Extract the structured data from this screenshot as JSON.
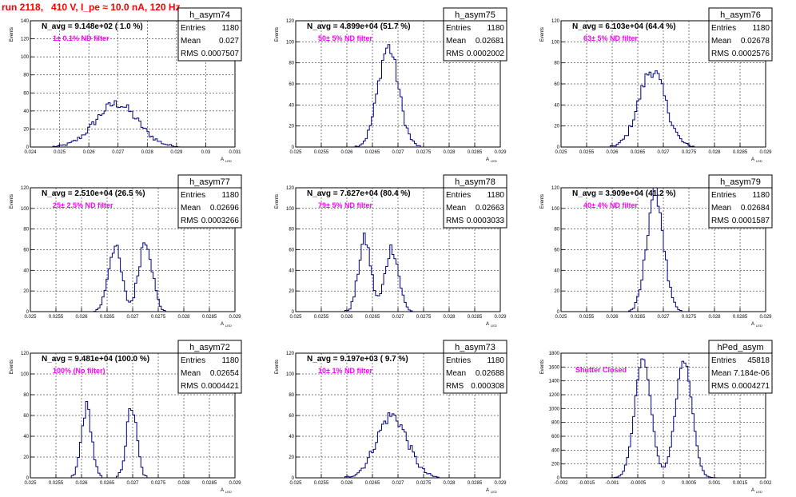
{
  "page": {
    "title": "run 2118,   410 V, I_pe ≈ 10.0 nA, 120 Hz",
    "stat_labels": [
      "Entries",
      "Mean",
      "RMS"
    ],
    "axis_label_y": "Events",
    "axis_label_x": "A",
    "axis_label_x_sub": "LED"
  },
  "chart_data": [
    {
      "type": "bar",
      "name": "h_asym74",
      "nav": "N_avg = 9.148e+02 ( 1.0 %)",
      "filter": "1± 0.1% ND filter",
      "entries": "1180",
      "mean": "0.027",
      "rms": "0.0007507",
      "xlim": [
        0.024,
        0.031
      ],
      "ylim": [
        0,
        140
      ],
      "xticks": [
        "0.024",
        "0.025",
        "0.026",
        "0.027",
        "0.028",
        "0.029",
        "0.03",
        "0.031"
      ],
      "yticks": [
        "0",
        "20",
        "40",
        "60",
        "80",
        "100",
        "120",
        "140"
      ],
      "bins": 100,
      "peaks": [
        [
          0.02695,
          0.00072,
          48
        ]
      ]
    },
    {
      "type": "bar",
      "name": "h_asym75",
      "nav": "N_avg = 4.899e+04 (51.7 %)",
      "filter": "50± 5% ND filter",
      "entries": "1180",
      "mean": "0.02681",
      "rms": "0.0002002",
      "xlim": [
        0.025,
        0.029
      ],
      "ylim": [
        0,
        120
      ],
      "xticks": [
        "0.025",
        "0.0255",
        "0.026",
        "0.0265",
        "0.027",
        "0.0275",
        "0.028",
        "0.0285",
        "0.029"
      ],
      "yticks": [
        "0",
        "20",
        "40",
        "60",
        "80",
        "100",
        "120"
      ],
      "bins": 100,
      "peaks": [
        [
          0.02681,
          0.0002,
          95
        ]
      ]
    },
    {
      "type": "bar",
      "name": "h_asym76",
      "nav": "N_avg = 6.103e+04 (64.4 %)",
      "filter": "63± 5% ND filter",
      "entries": "1180",
      "mean": "0.02678",
      "rms": "0.0002576",
      "xlim": [
        0.025,
        0.029
      ],
      "ylim": [
        0,
        120
      ],
      "xticks": [
        "0.025",
        "0.0255",
        "0.026",
        "0.0265",
        "0.027",
        "0.0275",
        "0.028",
        "0.0285",
        "0.029"
      ],
      "yticks": [
        "0",
        "20",
        "40",
        "60",
        "80",
        "100",
        "120"
      ],
      "bins": 100,
      "peaks": [
        [
          0.02678,
          0.00026,
          73
        ]
      ]
    },
    {
      "type": "bar",
      "name": "h_asym77",
      "nav": "N_avg = 2.510e+04 (26.5 %)",
      "filter": "25± 2.5% ND filter",
      "entries": "1180",
      "mean": "0.02696",
      "rms": "0.0003266",
      "xlim": [
        0.025,
        0.029
      ],
      "ylim": [
        0,
        120
      ],
      "xticks": [
        "0.025",
        "0.0255",
        "0.026",
        "0.0265",
        "0.027",
        "0.0275",
        "0.028",
        "0.0285",
        "0.029"
      ],
      "yticks": [
        "0",
        "20",
        "40",
        "60",
        "80",
        "100",
        "120"
      ],
      "bins": 100,
      "peaks": [
        [
          0.02665,
          0.00013,
          63
        ],
        [
          0.02725,
          0.00013,
          70
        ]
      ]
    },
    {
      "type": "bar",
      "name": "h_asym78",
      "nav": "N_avg = 7.627e+04 (80.4 %)",
      "filter": "79± 5% ND filter",
      "entries": "1180",
      "mean": "0.02663",
      "rms": "0.0003033",
      "xlim": [
        0.025,
        0.029
      ],
      "ylim": [
        0,
        120
      ],
      "xticks": [
        "0.025",
        "0.0255",
        "0.026",
        "0.0265",
        "0.027",
        "0.0275",
        "0.028",
        "0.0285",
        "0.029"
      ],
      "yticks": [
        "0",
        "20",
        "40",
        "60",
        "80",
        "100",
        "120"
      ],
      "bins": 100,
      "peaks": [
        [
          0.02635,
          0.00012,
          70
        ],
        [
          0.02688,
          0.00013,
          62
        ]
      ]
    },
    {
      "type": "bar",
      "name": "h_asym79",
      "nav": "N_avg = 3.909e+04 (41.2 %)",
      "filter": "40± 4% ND filter",
      "entries": "1180",
      "mean": "0.02684",
      "rms": "0.0001587",
      "xlim": [
        0.025,
        0.029
      ],
      "ylim": [
        0,
        120
      ],
      "xticks": [
        "0.025",
        "0.0255",
        "0.026",
        "0.0265",
        "0.027",
        "0.0275",
        "0.028",
        "0.0285",
        "0.029"
      ],
      "yticks": [
        "0",
        "20",
        "40",
        "60",
        "80",
        "100",
        "120"
      ],
      "bins": 100,
      "peaks": [
        [
          0.02684,
          0.00016,
          118
        ]
      ]
    },
    {
      "type": "bar",
      "name": "h_asym72",
      "nav": "N_avg = 9.481e+04 (100.0 %)",
      "filter": "100% (No filter)",
      "entries": "1180",
      "mean": "0.02654",
      "rms": "0.0004421",
      "xlim": [
        0.025,
        0.029
      ],
      "ylim": [
        0,
        120
      ],
      "xticks": [
        "0.025",
        "0.0255",
        "0.026",
        "0.0265",
        "0.027",
        "0.0275",
        "0.028",
        "0.0285",
        "0.029"
      ],
      "yticks": [
        "0",
        "20",
        "40",
        "60",
        "80",
        "100",
        "120"
      ],
      "bins": 100,
      "peaks": [
        [
          0.0261,
          0.0001,
          68
        ],
        [
          0.02698,
          0.0001,
          68
        ]
      ]
    },
    {
      "type": "bar",
      "name": "h_asym73",
      "nav": "N_avg = 9.197e+03 ( 9.7 %)",
      "filter": "10± 1% ND filter",
      "entries": "1180",
      "mean": "0.02688",
      "rms": "0.000308",
      "xlim": [
        0.025,
        0.029
      ],
      "ylim": [
        0,
        120
      ],
      "xticks": [
        "0.025",
        "0.0255",
        "0.026",
        "0.0265",
        "0.027",
        "0.0275",
        "0.028",
        "0.0285",
        "0.029"
      ],
      "yticks": [
        "0",
        "20",
        "40",
        "60",
        "80",
        "100",
        "120"
      ],
      "bins": 100,
      "peaks": [
        [
          0.02688,
          0.0003,
          60
        ]
      ]
    },
    {
      "type": "bar",
      "name": "hPed_asym",
      "nav": "",
      "filter": "Shutter Closed",
      "entries": "45818",
      "mean": "7.184e-06",
      "rms": "0.0004271",
      "xlim": [
        -0.002,
        0.002
      ],
      "ylim": [
        0,
        1800
      ],
      "xticks": [
        "-0.002",
        "-0.0015",
        "-0.001",
        "-0.0005",
        "0",
        "0.0005",
        "0.001",
        "0.0015",
        "0.002"
      ],
      "yticks": [
        "0",
        "200",
        "400",
        "600",
        "800",
        "1000",
        "1200",
        "1400",
        "1600",
        "1800"
      ],
      "bins": 100,
      "peaks": [
        [
          -0.0004,
          0.00016,
          1700
        ],
        [
          0.0004,
          0.00016,
          1700
        ]
      ]
    }
  ]
}
